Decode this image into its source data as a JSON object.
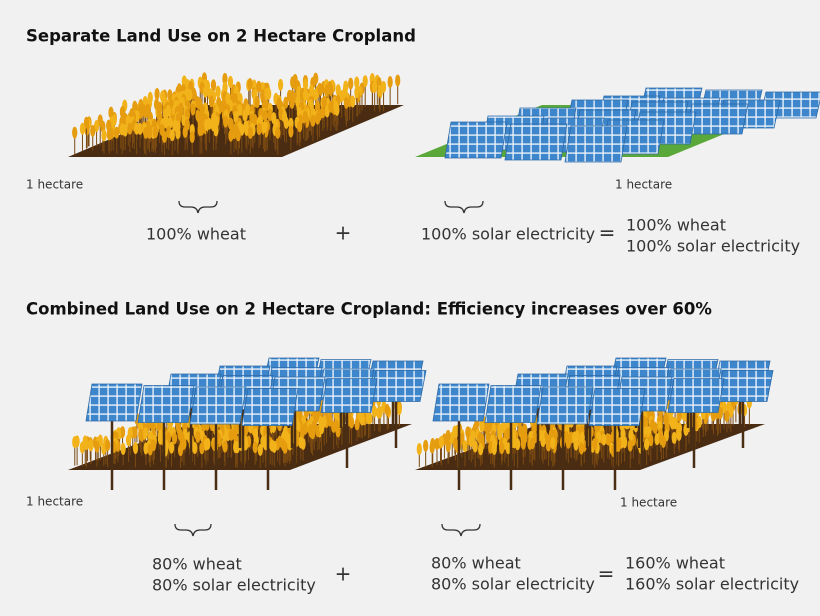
{
  "sections": [
    {
      "title": "Separate Land Use on 2 Hectare Cropland",
      "fields": [
        {
          "label": "1 hectare"
        },
        {
          "label": "1 hectare"
        }
      ],
      "left": {
        "lines": [
          "100% wheat"
        ]
      },
      "operator": "+",
      "right": {
        "lines": [
          "100% solar electricity"
        ]
      },
      "equals": "=",
      "result": {
        "lines": [
          "100% wheat",
          "100% solar electricity"
        ]
      }
    },
    {
      "title": "Combined Land Use on 2 Hectare Cropland: Efficiency increases over 60%",
      "fields": [
        {
          "label": "1 hectare"
        },
        {
          "label": "1 hectare"
        }
      ],
      "left": {
        "lines": [
          "80% wheat",
          "80% solar electricity"
        ]
      },
      "operator": "+",
      "right": {
        "lines": [
          "80% wheat",
          "80% solar electricity"
        ]
      },
      "equals": "=",
      "result": {
        "lines": [
          "160% wheat",
          "160% solar electricity"
        ]
      }
    }
  ]
}
